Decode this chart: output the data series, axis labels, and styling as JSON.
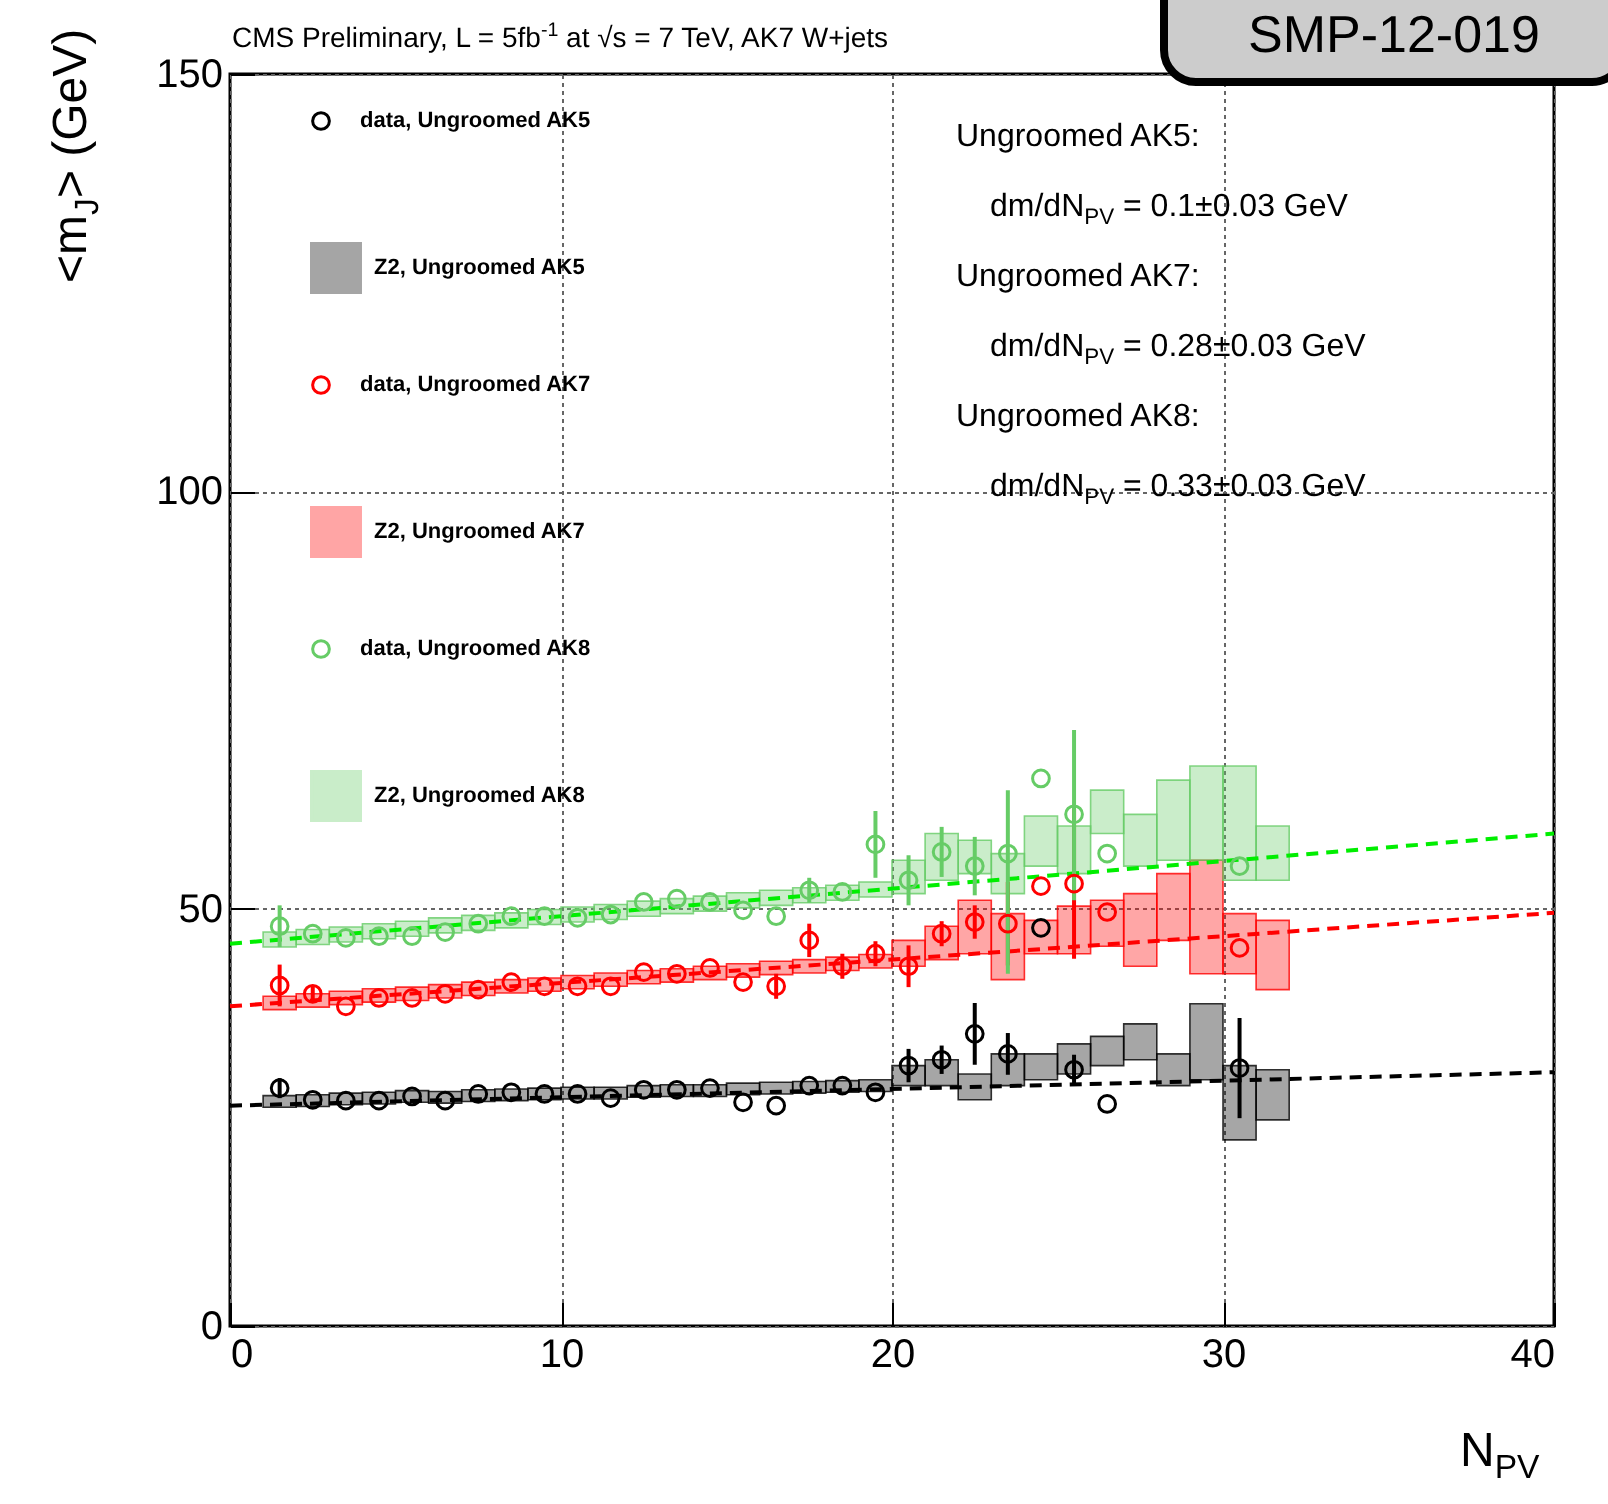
{
  "chart_data": {
    "type": "scatter",
    "title": "CMS Preliminary, L = 5fb$^{-1}$ at √s = 7 TeV, AK7 W+jets",
    "xlabel": "N$_{PV}$",
    "ylabel": "<m$_{J}$> (GeV)",
    "xlim": [
      0,
      40
    ],
    "ylim": [
      0,
      150
    ],
    "xticks": [
      0,
      10,
      20,
      30,
      40
    ],
    "yticks": [
      0,
      50,
      100,
      150
    ],
    "grid": true,
    "legend": "top left",
    "annotations": [
      "Ungroomed AK5:",
      "dm/dN$_{PV}$ = 0.1±0.03 GeV",
      "Ungroomed AK7:",
      "dm/dN$_{PV}$ = 0.28±0.03 GeV",
      "Ungroomed AK8:",
      "dm/dN$_{PV}$ = 0.33±0.03 GeV",
      "SMP-12-019"
    ],
    "series": [
      {
        "name": "data, Ungroomed AK5",
        "marker": "circle",
        "color": "#000000",
        "x": [
          1.5,
          2.5,
          3.5,
          4.5,
          5.5,
          6.5,
          7.5,
          8.5,
          9.5,
          10.5,
          11.5,
          12.5,
          13.5,
          14.5,
          15.5,
          16.5,
          17.5,
          18.5,
          19.5,
          20.5,
          21.5,
          22.5,
          23.5,
          24.5,
          25.5,
          26.5,
          30.5
        ],
        "values": [
          28.5,
          27.1,
          27,
          27,
          27.5,
          27,
          27.8,
          28,
          27.8,
          27.8,
          27.3,
          28.3,
          28.3,
          28.5,
          26.8,
          26.4,
          28.8,
          28.8,
          28,
          31.2,
          31.9,
          35,
          32.6,
          47.7,
          30.7,
          26.6,
          30.9
        ],
        "errors": [
          1.2,
          null,
          null,
          null,
          null,
          null,
          null,
          null,
          null,
          null,
          null,
          null,
          null,
          null,
          null,
          null,
          null,
          null,
          null,
          2,
          1.7,
          3.7,
          2.5,
          null,
          1.8,
          null,
          6
        ]
      },
      {
        "name": "Z2, Ungroomed AK5",
        "type": "bar",
        "color": "#000000",
        "x": [
          1.5,
          2.5,
          3.5,
          4.5,
          5.5,
          6.5,
          7.5,
          8.5,
          9.5,
          10.5,
          11.5,
          12.5,
          13.5,
          14.5,
          15.5,
          16.5,
          17.5,
          18.5,
          19.5,
          20.5,
          21.5,
          22.5,
          23.5,
          24.5,
          25.5,
          26.5,
          27.5,
          28.5,
          29.5,
          30.5,
          31.5
        ],
        "base": [
          26.2,
          26.3,
          26.5,
          26.6,
          26.8,
          26.7,
          26.9,
          27,
          27.1,
          27.2,
          27.2,
          27.4,
          27.5,
          27.5,
          27.7,
          27.8,
          27.9,
          28,
          28.1,
          28.8,
          28.8,
          27.1,
          28.8,
          29.5,
          30.2,
          31.2,
          31.9,
          28.8,
          29.5,
          22.3,
          24.7
        ],
        "values": [
          1.4,
          1.4,
          1.4,
          1.4,
          1.4,
          1.4,
          1.4,
          1.4,
          1.4,
          1.4,
          1.4,
          1.4,
          1.4,
          1.4,
          1.4,
          1.4,
          1.4,
          1.4,
          1.4,
          2.4,
          3.1,
          3.1,
          3.8,
          3.1,
          3.6,
          3.5,
          4.3,
          3.8,
          9.1,
          8.9,
          6
        ]
      },
      {
        "name": "data, Ungroomed AK7",
        "marker": "circle",
        "color": "#ff0000",
        "x": [
          1.5,
          2.5,
          3.5,
          4.5,
          5.5,
          6.5,
          7.5,
          8.5,
          9.5,
          10.5,
          11.5,
          12.5,
          13.5,
          14.5,
          15.5,
          16.5,
          17.5,
          18.5,
          19.5,
          20.5,
          21.5,
          22.5,
          23.5,
          24.5,
          25.5,
          26.5,
          30.5
        ],
        "values": [
          40.8,
          39.8,
          38.3,
          39.3,
          39.3,
          39.8,
          40.3,
          41.2,
          40.7,
          40.7,
          40.7,
          42.4,
          42.2,
          42.9,
          41.2,
          40.7,
          46.2,
          43.1,
          44.6,
          43.1,
          47,
          48.4,
          48.2,
          52.7,
          53,
          49.6,
          45.3
        ],
        "errors": [
          2.5,
          1,
          null,
          null,
          null,
          null,
          null,
          null,
          null,
          null,
          null,
          null,
          null,
          null,
          null,
          1.5,
          2,
          1.5,
          1.5,
          2.5,
          1.5,
          2,
          5,
          null,
          9,
          null,
          null
        ]
      },
      {
        "name": "Z2, Ungroomed AK7",
        "type": "bar",
        "color": "#ff0000",
        "x": [
          1.5,
          2.5,
          3.5,
          4.5,
          5.5,
          6.5,
          7.5,
          8.5,
          9.5,
          10.5,
          11.5,
          12.5,
          13.5,
          14.5,
          15.5,
          16.5,
          17.5,
          18.5,
          19.5,
          20.5,
          21.5,
          22.5,
          23.5,
          24.5,
          25.5,
          26.5,
          27.5,
          28.5,
          29.5,
          30.5,
          31.5
        ],
        "base": [
          37.9,
          38.2,
          38.5,
          38.8,
          39,
          39.3,
          39.6,
          39.9,
          40.1,
          40.4,
          40.7,
          41,
          41.2,
          41.5,
          41.8,
          42.1,
          42.3,
          42.6,
          42.9,
          43.1,
          43.9,
          44.6,
          41.5,
          44.6,
          44.6,
          45.5,
          43.1,
          46.2,
          42.2,
          42.2,
          40.3
        ],
        "values": [
          1.6,
          1.6,
          1.6,
          1.6,
          1.6,
          1.6,
          1.6,
          1.6,
          1.6,
          1.6,
          1.6,
          1.6,
          1.6,
          1.6,
          1.6,
          1.6,
          1.6,
          1.6,
          1.6,
          3.1,
          4,
          6.4,
          7.9,
          4,
          5.7,
          5.5,
          8.7,
          8,
          13.6,
          7.2,
          8.3
        ]
      },
      {
        "name": "data, Ungroomed AK8",
        "marker": "circle",
        "color": "#66cc66",
        "x": [
          1.5,
          2.5,
          3.5,
          4.5,
          5.5,
          6.5,
          7.5,
          8.5,
          9.5,
          10.5,
          11.5,
          12.5,
          13.5,
          14.5,
          15.5,
          16.5,
          17.5,
          18.5,
          19.5,
          20.5,
          21.5,
          22.5,
          23.5,
          24.5,
          25.5,
          26.5,
          30.5
        ],
        "values": [
          47.9,
          47,
          46.5,
          46.7,
          46.7,
          47.2,
          48.2,
          49.1,
          49.1,
          48.9,
          49.3,
          50.8,
          51.2,
          50.8,
          49.8,
          49.1,
          52.2,
          52,
          57.7,
          53.4,
          56.8,
          55.1,
          56.6,
          65.6,
          61.3,
          56.6,
          55.1
        ],
        "errors": [
          2.5,
          null,
          null,
          null,
          null,
          null,
          null,
          null,
          null,
          null,
          null,
          null,
          null,
          null,
          null,
          null,
          1.5,
          null,
          4,
          3,
          3,
          3.5,
          [
            42.2,
            64.2
          ],
          null,
          [
            51,
            71.4
          ],
          null,
          null
        ]
      },
      {
        "name": "Z2, Ungroomed AK8",
        "type": "bar",
        "color": "#66cc66",
        "x": [
          1.5,
          2.5,
          3.5,
          4.5,
          5.5,
          6.5,
          7.5,
          8.5,
          9.5,
          10.5,
          11.5,
          12.5,
          13.5,
          14.5,
          15.5,
          16.5,
          17.5,
          18.5,
          19.5,
          20.5,
          21.5,
          22.5,
          23.5,
          24.5,
          25.5,
          26.5,
          27.5,
          28.5,
          29.5,
          30.5,
          31.5
        ],
        "base": [
          45.4,
          45.7,
          46,
          46.4,
          46.7,
          47.1,
          47.4,
          47.7,
          48.1,
          48.4,
          48.7,
          49.1,
          49.4,
          49.7,
          50.1,
          50.4,
          50.7,
          51,
          51.4,
          51.8,
          53.4,
          54.2,
          51.8,
          55.1,
          54.2,
          59,
          55.1,
          55.8,
          55.8,
          53.4,
          53.4
        ],
        "values": [
          1.8,
          1.8,
          1.8,
          1.8,
          1.8,
          1.8,
          1.8,
          1.8,
          1.8,
          1.8,
          1.8,
          1.8,
          1.8,
          1.8,
          1.8,
          1.8,
          1.8,
          1.8,
          1.8,
          4,
          5.6,
          4,
          4.8,
          6,
          5.7,
          5.2,
          6.2,
          9.6,
          11.3,
          13.7,
          6.5
        ]
      },
      {
        "type": "line",
        "line_style": "dashed",
        "color": "#000000",
        "x": [
          0,
          40
        ],
        "values": [
          26.4,
          30.4
        ]
      },
      {
        "type": "line",
        "line_style": "dashed",
        "color": "#ff0000",
        "x": [
          0,
          40
        ],
        "values": [
          38.3,
          49.5
        ]
      },
      {
        "type": "line",
        "line_style": "dashed",
        "color": "#00ee00",
        "x": [
          0,
          40
        ],
        "values": [
          45.8,
          59
        ]
      }
    ]
  }
}
